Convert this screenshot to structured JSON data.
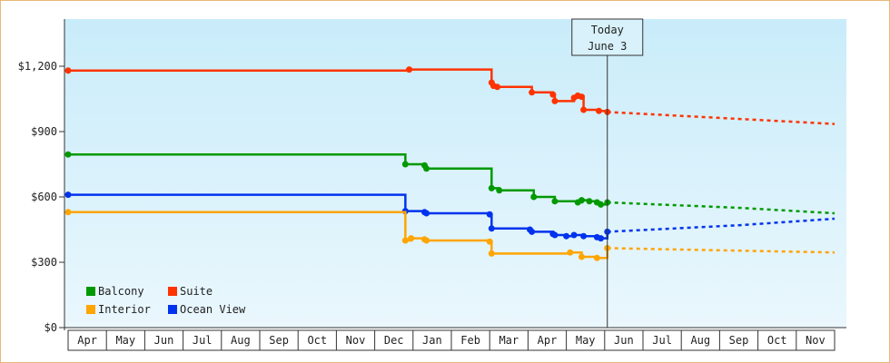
{
  "chart_data": {
    "type": "line",
    "ylim": [
      0,
      1400
    ],
    "y_ticks": [
      {
        "value": 0,
        "label": "$0"
      },
      {
        "value": 300,
        "label": "$300"
      },
      {
        "value": 600,
        "label": "$600"
      },
      {
        "value": 900,
        "label": "$900"
      },
      {
        "value": 1200,
        "label": "$1,200"
      }
    ],
    "x_months": [
      "Apr",
      "May",
      "Jun",
      "Jul",
      "Aug",
      "Sep",
      "Oct",
      "Nov",
      "Dec",
      "Jan",
      "Feb",
      "Mar",
      "Apr",
      "May",
      "Jun",
      "Jul",
      "Aug",
      "Sep",
      "Oct",
      "Nov"
    ],
    "today": {
      "line1": "Today",
      "line2": "June 3",
      "month_index": 14.07
    },
    "grid": false,
    "legend_position": "bottom-left",
    "background_gradient": [
      "#c9ecfa",
      "#eaf7fd"
    ],
    "series": [
      {
        "name": "Suite",
        "color": "#ff3300",
        "step": true,
        "points": [
          [
            0,
            1180
          ],
          [
            8.85,
            1180
          ],
          [
            8.9,
            1185
          ],
          [
            11.0,
            1185
          ],
          [
            11.05,
            1125
          ],
          [
            11.1,
            1110
          ],
          [
            11.2,
            1105
          ],
          [
            12.05,
            1105
          ],
          [
            12.1,
            1080
          ],
          [
            12.65,
            1070
          ],
          [
            12.7,
            1040
          ],
          [
            13.15,
            1040
          ],
          [
            13.2,
            1055
          ],
          [
            13.3,
            1065
          ],
          [
            13.4,
            1060
          ],
          [
            13.45,
            1000
          ],
          [
            13.8,
            1000
          ],
          [
            13.85,
            995
          ],
          [
            14.07,
            990
          ]
        ],
        "forecast": [
          [
            14.07,
            990
          ],
          [
            20.0,
            935
          ]
        ]
      },
      {
        "name": "Balcony",
        "color": "#009900",
        "step": true,
        "points": [
          [
            0,
            795
          ],
          [
            8.75,
            795
          ],
          [
            8.8,
            750
          ],
          [
            9.3,
            745
          ],
          [
            9.35,
            730
          ],
          [
            11.0,
            730
          ],
          [
            11.05,
            640
          ],
          [
            11.25,
            630
          ],
          [
            12.1,
            630
          ],
          [
            12.15,
            600
          ],
          [
            12.65,
            600
          ],
          [
            12.7,
            580
          ],
          [
            13.2,
            580
          ],
          [
            13.3,
            575
          ],
          [
            13.4,
            585
          ],
          [
            13.6,
            580
          ],
          [
            13.8,
            575
          ],
          [
            13.9,
            565
          ],
          [
            14.07,
            575
          ]
        ],
        "forecast": [
          [
            14.07,
            575
          ],
          [
            17.5,
            550
          ],
          [
            20.0,
            525
          ]
        ]
      },
      {
        "name": "Ocean View",
        "color": "#0033ee",
        "step": true,
        "points": [
          [
            0,
            610
          ],
          [
            8.75,
            610
          ],
          [
            8.8,
            535
          ],
          [
            9.3,
            530
          ],
          [
            9.35,
            525
          ],
          [
            11.0,
            520
          ],
          [
            11.05,
            455
          ],
          [
            12.05,
            450
          ],
          [
            12.1,
            440
          ],
          [
            12.65,
            430
          ],
          [
            12.7,
            425
          ],
          [
            13.0,
            420
          ],
          [
            13.2,
            425
          ],
          [
            13.4,
            425
          ],
          [
            13.45,
            420
          ],
          [
            13.8,
            415
          ],
          [
            13.9,
            410
          ],
          [
            14.07,
            440
          ]
        ],
        "forecast": [
          [
            14.07,
            440
          ],
          [
            17.5,
            470
          ],
          [
            20.0,
            500
          ]
        ]
      },
      {
        "name": "Interior",
        "color": "#ffa500",
        "step": true,
        "points": [
          [
            0,
            530
          ],
          [
            8.75,
            530
          ],
          [
            8.8,
            400
          ],
          [
            8.9,
            400
          ],
          [
            8.95,
            410
          ],
          [
            9.3,
            405
          ],
          [
            9.35,
            400
          ],
          [
            11.0,
            395
          ],
          [
            11.05,
            340
          ],
          [
            12.65,
            340
          ],
          [
            12.7,
            340
          ],
          [
            13.05,
            340
          ],
          [
            13.1,
            345
          ],
          [
            13.35,
            345
          ],
          [
            13.4,
            325
          ],
          [
            13.8,
            320
          ],
          [
            13.9,
            320
          ],
          [
            14.07,
            365
          ]
        ],
        "forecast": [
          [
            14.07,
            365
          ],
          [
            17.0,
            355
          ],
          [
            20.0,
            345
          ]
        ]
      }
    ],
    "legend": [
      {
        "name": "Balcony",
        "color": "#009900"
      },
      {
        "name": "Suite",
        "color": "#ff3300"
      },
      {
        "name": "Interior",
        "color": "#ffa500"
      },
      {
        "name": "Ocean View",
        "color": "#0033ee"
      }
    ]
  }
}
